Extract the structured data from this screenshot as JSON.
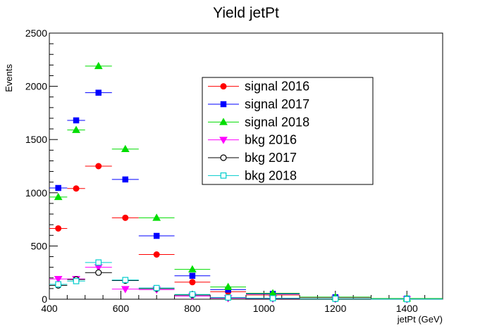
{
  "chart_data": {
    "type": "scatter",
    "title": "Yield jetPt",
    "xlabel": "jetPt (GeV)",
    "ylabel": "Events",
    "xlim": [
      400,
      1500
    ],
    "ylim": [
      0,
      2500
    ],
    "x_ticks": [
      400,
      600,
      800,
      1000,
      1200,
      1400
    ],
    "x_tick_labels": [
      "400",
      "600",
      "800",
      "1000",
      "1200",
      "1400"
    ],
    "y_ticks": [
      0,
      500,
      1000,
      1500,
      2000,
      2500
    ],
    "y_tick_labels": [
      "0",
      "500",
      "1000",
      "1500",
      "2000",
      "2500"
    ],
    "legend_position": "upper-center",
    "grid": false,
    "bins": [
      {
        "low": 400,
        "high": 450
      },
      {
        "low": 450,
        "high": 500
      },
      {
        "low": 500,
        "high": 575
      },
      {
        "low": 575,
        "high": 650
      },
      {
        "low": 650,
        "high": 750
      },
      {
        "low": 750,
        "high": 850
      },
      {
        "low": 850,
        "high": 950
      },
      {
        "low": 950,
        "high": 1100
      },
      {
        "low": 1100,
        "high": 1300
      },
      {
        "low": 1300,
        "high": 1500
      }
    ],
    "series": [
      {
        "name": "signal 2016",
        "color": "#ff0000",
        "marker": "circle-filled",
        "values": [
          665,
          1040,
          1250,
          765,
          420,
          160,
          70,
          40,
          15,
          5
        ]
      },
      {
        "name": "signal 2017",
        "color": "#0000ff",
        "marker": "square-filled",
        "values": [
          1045,
          1680,
          1940,
          1125,
          595,
          220,
          90,
          50,
          18,
          6
        ]
      },
      {
        "name": "signal 2018",
        "color": "#00dd00",
        "marker": "triangle-up-filled",
        "values": [
          960,
          1590,
          2190,
          1410,
          765,
          280,
          115,
          55,
          20,
          7
        ]
      },
      {
        "name": "bkg 2016",
        "color": "#ff00ff",
        "marker": "triangle-down-filled",
        "values": [
          190,
          190,
          300,
          95,
          90,
          30,
          10,
          6,
          3,
          1
        ]
      },
      {
        "name": "bkg 2017",
        "color": "#000000",
        "marker": "circle-open",
        "values": [
          130,
          185,
          250,
          175,
          100,
          40,
          15,
          8,
          3,
          1
        ]
      },
      {
        "name": "bkg 2018",
        "color": "#00cccc",
        "marker": "square-open",
        "values": [
          140,
          170,
          345,
          180,
          105,
          45,
          16,
          9,
          4,
          1
        ]
      }
    ]
  }
}
